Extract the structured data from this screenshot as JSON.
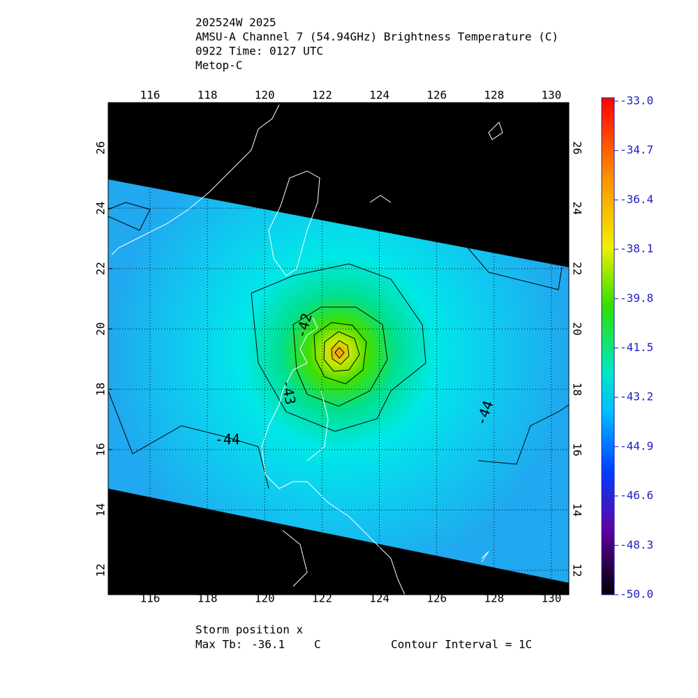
{
  "header": {
    "lines": [
      "202524W 2025",
      "AMSU-A Channel 7 (54.94GHz) Brightness Temperature (C)",
      "0922 Time: 0127 UTC",
      "Metop-C"
    ]
  },
  "map": {
    "xlim": [
      114.54,
      130.61
    ],
    "ylim": [
      11.19,
      27.5
    ],
    "xticks": [
      116,
      118,
      120,
      122,
      124,
      126,
      128,
      130
    ],
    "yticks": [
      12,
      14,
      16,
      18,
      20,
      22,
      24,
      26
    ],
    "grid": true,
    "contour_labels": [
      {
        "value": -42,
        "lon": 121.4,
        "lat": 20.1,
        "rotate": -75
      },
      {
        "value": -43,
        "lon": 120.8,
        "lat": 17.9,
        "rotate": 80
      },
      {
        "value": -44,
        "lon": 118.7,
        "lat": 16.3,
        "rotate": 0
      },
      {
        "value": -44,
        "lon": 127.7,
        "lat": 17.2,
        "rotate": -70
      }
    ]
  },
  "colorbar": {
    "lim": [
      -50,
      -33
    ],
    "ticks": [
      {
        "value": -33,
        "label": "-33.0"
      },
      {
        "value": -34.7,
        "label": "-34.7"
      },
      {
        "value": -36.4,
        "label": "-36.4"
      },
      {
        "value": -38.1,
        "label": "-38.1"
      },
      {
        "value": -39.8,
        "label": "-39.8"
      },
      {
        "value": -41.5,
        "label": "-41.5"
      },
      {
        "value": -43.2,
        "label": "-43.2"
      },
      {
        "value": -44.9,
        "label": "-44.9"
      },
      {
        "value": -46.6,
        "label": "-46.6"
      },
      {
        "value": -48.3,
        "label": "-48.3"
      },
      {
        "value": -50,
        "label": "-50.0"
      }
    ]
  },
  "footer": {
    "storm_position": "Storm position x",
    "max_tb_label": "Max Tb:",
    "max_tb": -36.1,
    "max_tb_unit": "C",
    "contour_interval": "Contour Interval = 1C"
  }
}
